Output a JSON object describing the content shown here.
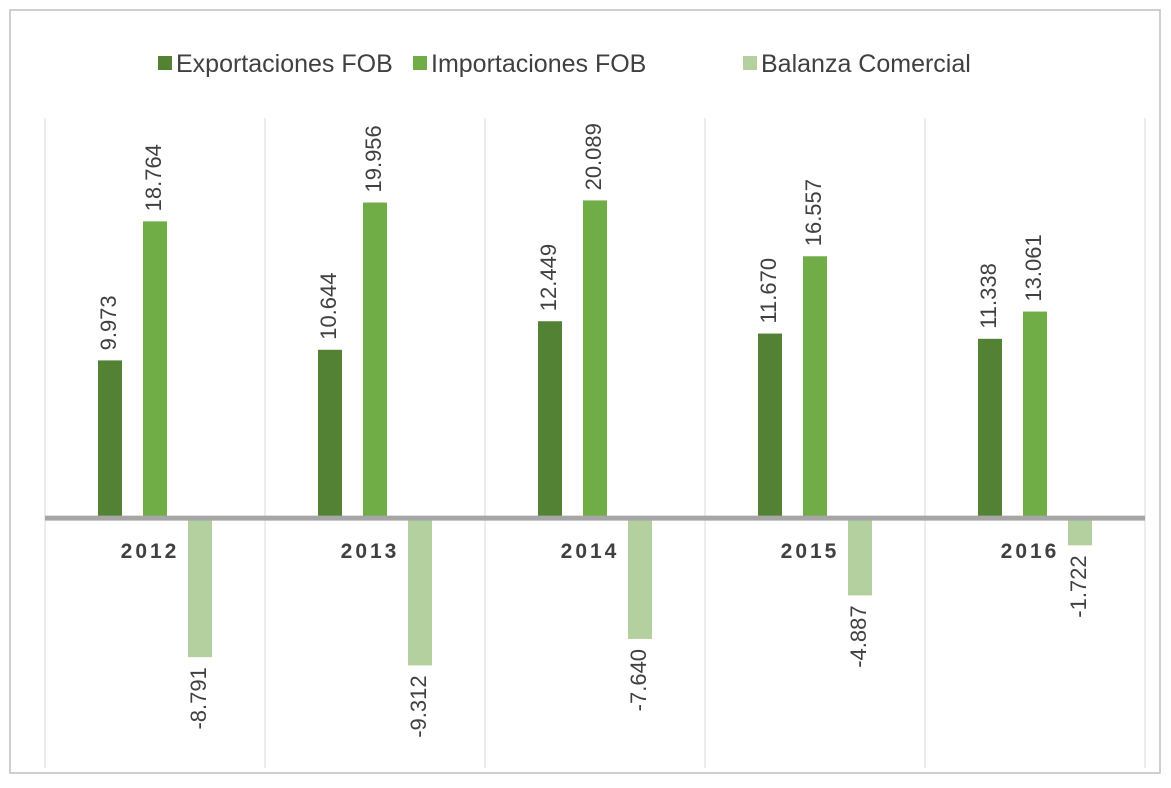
{
  "chart_data": {
    "type": "bar",
    "categories": [
      "2012",
      "2013",
      "2014",
      "2015",
      "2016"
    ],
    "series": [
      {
        "name": "Exportaciones FOB",
        "color": "#548235",
        "values": [
          9.973,
          10.644,
          12.449,
          11.67,
          11.338
        ],
        "value_labels": [
          "9.973",
          "10.644",
          "12.449",
          "11.670",
          "11.338"
        ]
      },
      {
        "name": "Importaciones FOB",
        "color": "#70ad47",
        "values": [
          18.764,
          19.956,
          20.089,
          16.557,
          13.061
        ],
        "value_labels": [
          "18.764",
          "19.956",
          "20.089",
          "16.557",
          "13.061"
        ]
      },
      {
        "name": "Balanza Comercial",
        "color": "#b4d09f",
        "values": [
          -8.791,
          -9.312,
          -7.64,
          -4.887,
          -1.722
        ],
        "value_labels": [
          "-8.791",
          "-9.312",
          "-7.640",
          "-4.887",
          "-1.722"
        ]
      }
    ],
    "ylim": [
      -15.8,
      25.3
    ],
    "legend": "top"
  }
}
